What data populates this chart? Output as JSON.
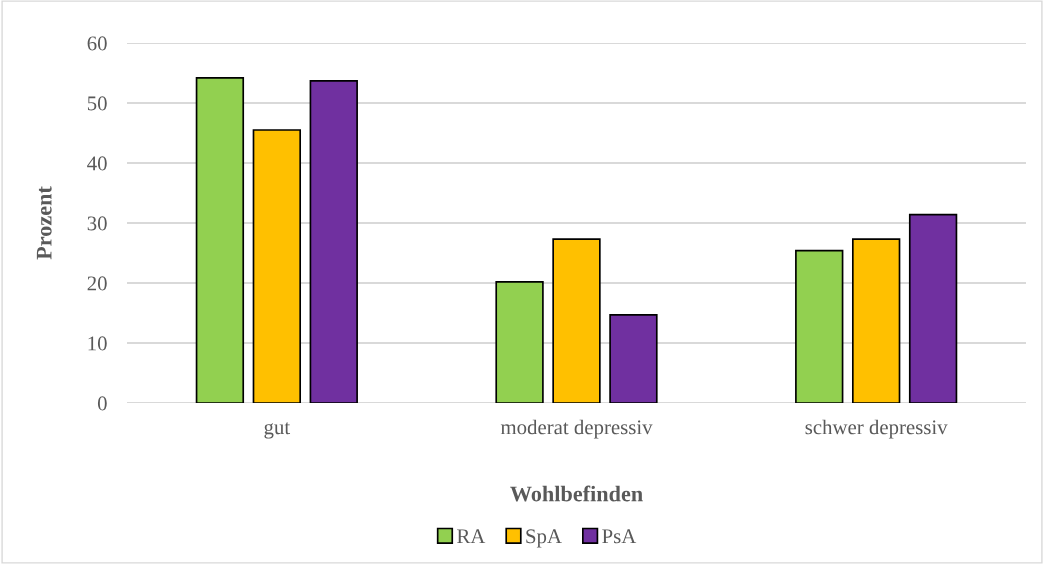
{
  "chart_data": {
    "type": "bar",
    "xlabel": "Wohlbefinden",
    "ylabel": "Prozent",
    "categories": [
      "gut",
      "moderat depressiv",
      "schwer depressiv"
    ],
    "series": [
      {
        "name": "RA",
        "color": "#92d050",
        "values": [
          54.2,
          20.2,
          25.4
        ]
      },
      {
        "name": "SpA",
        "color": "#ffc000",
        "values": [
          45.5,
          27.3,
          27.3
        ]
      },
      {
        "name": "PsA",
        "color": "#7030a0",
        "values": [
          53.7,
          14.7,
          31.4
        ]
      }
    ],
    "ylim": [
      0,
      60
    ],
    "yticks": [
      0,
      10,
      20,
      30,
      40,
      50,
      60
    ],
    "grid": "y",
    "legend": "bottom"
  }
}
